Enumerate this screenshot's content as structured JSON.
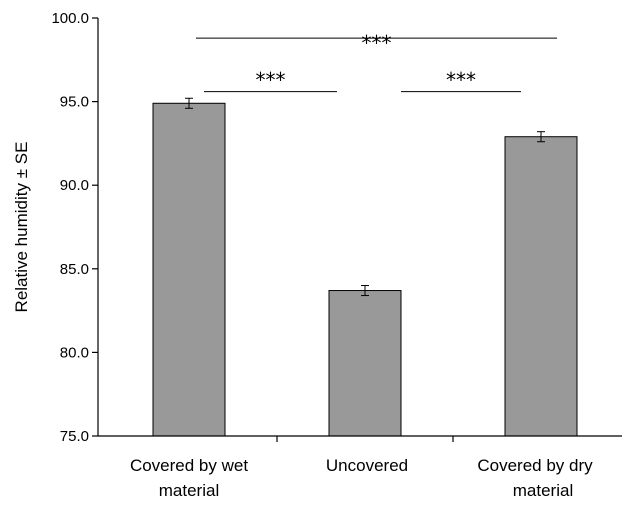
{
  "chart_data": {
    "type": "bar",
    "categories": [
      [
        "Covered by wet",
        "material"
      ],
      [
        "Uncovered"
      ],
      [
        "Covered by dry",
        "material"
      ]
    ],
    "values": [
      94.9,
      83.7,
      92.9
    ],
    "errors": [
      0.3,
      0.3,
      0.3
    ],
    "ylabel": "Relative humidity ± SE",
    "ylim": [
      75.0,
      100.0
    ],
    "yticks": [
      "75.0",
      "80.0",
      "85.0",
      "90.0",
      "95.0",
      "100.0"
    ],
    "grid": false,
    "legend": "none",
    "colors": {
      "bar_fill": "#999999",
      "bar_stroke": "#000000",
      "axis": "#000000"
    },
    "significance": [
      {
        "from": 0,
        "to": 2,
        "label": "***",
        "level": 98.8
      },
      {
        "from": 0,
        "to": 1,
        "label": "***",
        "level": 95.6
      },
      {
        "from": 1,
        "to": 2,
        "label": "***",
        "level": 95.6
      }
    ]
  }
}
